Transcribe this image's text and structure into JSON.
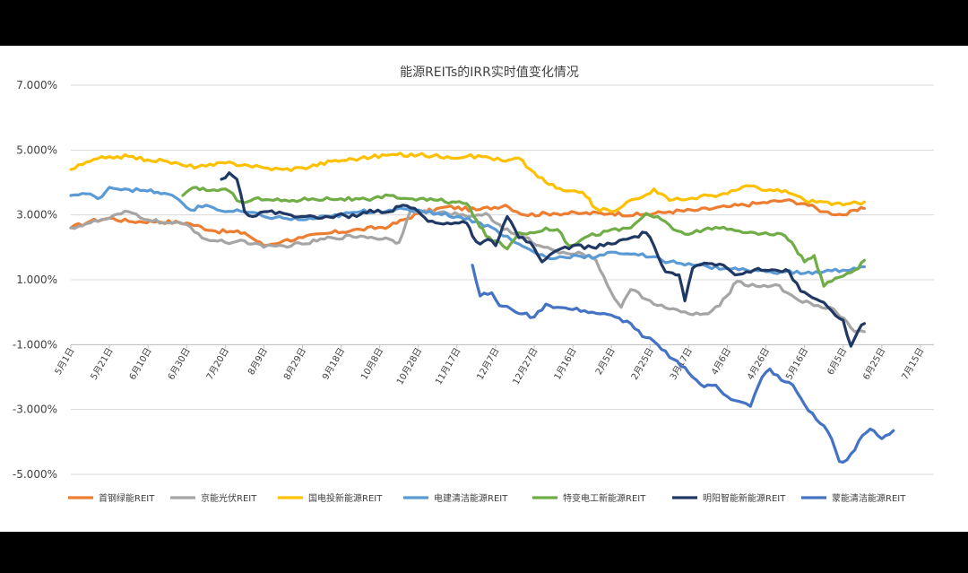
{
  "chart_data": {
    "type": "line",
    "title": "能源REITs的IRR实时值变化情况",
    "xlabel": "",
    "ylabel": "",
    "ylim": [
      -5.0,
      7.0
    ],
    "yticks": [
      {
        "value": 7.0,
        "label": "7.000%"
      },
      {
        "value": 5.0,
        "label": "5.000%"
      },
      {
        "value": 3.0,
        "label": "3.000%"
      },
      {
        "value": 1.0,
        "label": "1.000%"
      },
      {
        "value": -1.0,
        "label": "-1.000%"
      },
      {
        "value": -3.0,
        "label": "-3.000%"
      },
      {
        "value": -5.0,
        "label": "-5.000%"
      }
    ],
    "x_dates": [
      "5月1日",
      "5月21日",
      "6月10日",
      "6月30日",
      "7月20日",
      "8月9日",
      "8月29日",
      "9月18日",
      "10月8日",
      "10月28日",
      "11月17日",
      "12月7日",
      "12月27日",
      "1月16日",
      "2月5日",
      "2月25日",
      "3月17日",
      "4月6日",
      "4月26日",
      "5月16日",
      "6月5日",
      "6月25日",
      "7月15日"
    ],
    "x_range": [
      "5月1日",
      "7月21日"
    ],
    "grid": true,
    "legend_position": "bottom",
    "series": [
      {
        "name": "首钢绿能REIT",
        "color": "#ed7d31",
        "points": [
          [
            0,
            2.6
          ],
          [
            10,
            2.8
          ],
          [
            20,
            2.9
          ],
          [
            30,
            2.8
          ],
          [
            45,
            2.8
          ],
          [
            60,
            2.75
          ],
          [
            75,
            2.5
          ],
          [
            90,
            2.45
          ],
          [
            100,
            2.05
          ],
          [
            110,
            2.2
          ],
          [
            120,
            2.3
          ],
          [
            135,
            2.45
          ],
          [
            150,
            2.55
          ],
          [
            165,
            2.65
          ],
          [
            180,
            3.05
          ],
          [
            195,
            3.25
          ],
          [
            210,
            3.15
          ],
          [
            225,
            3.3
          ],
          [
            235,
            3.0
          ],
          [
            250,
            3.05
          ],
          [
            265,
            3.05
          ],
          [
            280,
            3.05
          ],
          [
            295,
            3.0
          ],
          [
            310,
            3.1
          ],
          [
            325,
            3.15
          ],
          [
            340,
            3.25
          ],
          [
            355,
            3.35
          ],
          [
            370,
            3.45
          ],
          [
            380,
            3.35
          ],
          [
            390,
            3.1
          ],
          [
            400,
            3.0
          ],
          [
            411,
            3.2
          ]
        ]
      },
      {
        "name": "京能光伏REIT",
        "color": "#a5a5a5",
        "points": [
          [
            0,
            2.6
          ],
          [
            10,
            2.75
          ],
          [
            20,
            2.9
          ],
          [
            30,
            3.1
          ],
          [
            40,
            2.85
          ],
          [
            50,
            2.75
          ],
          [
            60,
            2.7
          ],
          [
            70,
            2.25
          ],
          [
            80,
            2.15
          ],
          [
            90,
            2.2
          ],
          [
            100,
            2.0
          ],
          [
            110,
            2.05
          ],
          [
            120,
            2.1
          ],
          [
            135,
            2.3
          ],
          [
            150,
            2.35
          ],
          [
            165,
            2.25
          ],
          [
            170,
            2.15
          ],
          [
            176,
            3.15
          ],
          [
            185,
            3.1
          ],
          [
            195,
            3.05
          ],
          [
            205,
            2.95
          ],
          [
            215,
            3.05
          ],
          [
            220,
            2.75
          ],
          [
            228,
            2.45
          ],
          [
            235,
            2.3
          ],
          [
            245,
            2.0
          ],
          [
            255,
            1.85
          ],
          [
            265,
            1.8
          ],
          [
            272,
            1.6
          ],
          [
            280,
            0.6
          ],
          [
            285,
            0.15
          ],
          [
            290,
            0.7
          ],
          [
            298,
            0.4
          ],
          [
            310,
            0.1
          ],
          [
            320,
            -0.05
          ],
          [
            330,
            -0.05
          ],
          [
            336,
            0.2
          ],
          [
            345,
            0.95
          ],
          [
            355,
            0.8
          ],
          [
            365,
            0.85
          ],
          [
            375,
            0.45
          ],
          [
            385,
            0.2
          ],
          [
            395,
            0.1
          ],
          [
            402,
            -0.3
          ],
          [
            406,
            -0.6
          ],
          [
            411,
            -0.6
          ]
        ]
      },
      {
        "name": "国电投新能源REIT",
        "color": "#ffc000",
        "points": [
          [
            0,
            4.4
          ],
          [
            10,
            4.65
          ],
          [
            20,
            4.8
          ],
          [
            30,
            4.8
          ],
          [
            40,
            4.7
          ],
          [
            50,
            4.65
          ],
          [
            60,
            4.5
          ],
          [
            70,
            4.5
          ],
          [
            80,
            4.6
          ],
          [
            90,
            4.55
          ],
          [
            100,
            4.45
          ],
          [
            110,
            4.4
          ],
          [
            120,
            4.45
          ],
          [
            135,
            4.65
          ],
          [
            150,
            4.75
          ],
          [
            165,
            4.85
          ],
          [
            180,
            4.85
          ],
          [
            195,
            4.8
          ],
          [
            205,
            4.8
          ],
          [
            215,
            4.8
          ],
          [
            225,
            4.65
          ],
          [
            232,
            4.75
          ],
          [
            238,
            4.4
          ],
          [
            246,
            4.0
          ],
          [
            255,
            3.75
          ],
          [
            265,
            3.7
          ],
          [
            272,
            3.2
          ],
          [
            280,
            3.1
          ],
          [
            288,
            3.4
          ],
          [
            296,
            3.55
          ],
          [
            302,
            3.8
          ],
          [
            310,
            3.45
          ],
          [
            320,
            3.5
          ],
          [
            330,
            3.6
          ],
          [
            340,
            3.65
          ],
          [
            350,
            3.9
          ],
          [
            360,
            3.75
          ],
          [
            370,
            3.75
          ],
          [
            380,
            3.45
          ],
          [
            390,
            3.4
          ],
          [
            400,
            3.3
          ],
          [
            411,
            3.4
          ]
        ]
      },
      {
        "name": "电建清洁能源REIT",
        "color": "#5b9bd5",
        "points": [
          [
            0,
            3.6
          ],
          [
            8,
            3.65
          ],
          [
            14,
            3.5
          ],
          [
            20,
            3.85
          ],
          [
            28,
            3.8
          ],
          [
            36,
            3.75
          ],
          [
            45,
            3.7
          ],
          [
            54,
            3.55
          ],
          [
            62,
            3.15
          ],
          [
            70,
            3.3
          ],
          [
            80,
            3.1
          ],
          [
            90,
            3.1
          ],
          [
            100,
            2.95
          ],
          [
            110,
            2.9
          ],
          [
            120,
            2.85
          ],
          [
            135,
            2.95
          ],
          [
            150,
            3.1
          ],
          [
            165,
            3.15
          ],
          [
            180,
            3.15
          ],
          [
            190,
            3.05
          ],
          [
            200,
            2.95
          ],
          [
            210,
            2.8
          ],
          [
            220,
            2.55
          ],
          [
            230,
            2.15
          ],
          [
            240,
            1.85
          ],
          [
            248,
            1.65
          ],
          [
            255,
            1.7
          ],
          [
            262,
            1.75
          ],
          [
            272,
            1.7
          ],
          [
            282,
            1.85
          ],
          [
            292,
            1.8
          ],
          [
            300,
            1.7
          ],
          [
            310,
            1.55
          ],
          [
            320,
            1.5
          ],
          [
            330,
            1.4
          ],
          [
            340,
            1.35
          ],
          [
            350,
            1.3
          ],
          [
            360,
            1.25
          ],
          [
            370,
            1.25
          ],
          [
            380,
            1.2
          ],
          [
            390,
            1.25
          ],
          [
            400,
            1.3
          ],
          [
            411,
            1.4
          ]
        ]
      },
      {
        "name": "特变电工新能源REIT",
        "color": "#70ad47",
        "points": [
          [
            58,
            3.6
          ],
          [
            65,
            3.85
          ],
          [
            72,
            3.75
          ],
          [
            80,
            3.8
          ],
          [
            88,
            3.4
          ],
          [
            95,
            3.5
          ],
          [
            105,
            3.45
          ],
          [
            115,
            3.45
          ],
          [
            125,
            3.5
          ],
          [
            140,
            3.5
          ],
          [
            155,
            3.45
          ],
          [
            165,
            3.6
          ],
          [
            175,
            3.5
          ],
          [
            190,
            3.45
          ],
          [
            205,
            3.35
          ],
          [
            210,
            2.85
          ],
          [
            215,
            2.35
          ],
          [
            220,
            2.2
          ],
          [
            226,
            1.95
          ],
          [
            232,
            2.45
          ],
          [
            240,
            2.45
          ],
          [
            246,
            2.6
          ],
          [
            252,
            2.55
          ],
          [
            258,
            2.05
          ],
          [
            268,
            2.35
          ],
          [
            278,
            2.5
          ],
          [
            290,
            2.6
          ],
          [
            298,
            3.05
          ],
          [
            306,
            2.85
          ],
          [
            312,
            2.55
          ],
          [
            320,
            2.4
          ],
          [
            330,
            2.6
          ],
          [
            340,
            2.55
          ],
          [
            350,
            2.45
          ],
          [
            360,
            2.45
          ],
          [
            370,
            2.35
          ],
          [
            375,
            2.0
          ],
          [
            380,
            1.55
          ],
          [
            385,
            1.75
          ],
          [
            390,
            0.8
          ],
          [
            396,
            1.05
          ],
          [
            402,
            1.2
          ],
          [
            406,
            1.3
          ],
          [
            411,
            1.6
          ]
        ]
      },
      {
        "name": "明阳智能新能源REIT",
        "color": "#203864",
        "points": [
          [
            78,
            4.1
          ],
          [
            82,
            4.3
          ],
          [
            86,
            4.1
          ],
          [
            88,
            3.65
          ],
          [
            90,
            3.1
          ],
          [
            94,
            2.95
          ],
          [
            100,
            3.1
          ],
          [
            110,
            3.05
          ],
          [
            120,
            2.95
          ],
          [
            130,
            2.9
          ],
          [
            138,
            3.0
          ],
          [
            148,
            2.95
          ],
          [
            155,
            3.15
          ],
          [
            165,
            3.1
          ],
          [
            172,
            3.3
          ],
          [
            178,
            3.2
          ],
          [
            185,
            2.8
          ],
          [
            195,
            2.75
          ],
          [
            205,
            2.75
          ],
          [
            208,
            2.35
          ],
          [
            212,
            2.1
          ],
          [
            216,
            2.25
          ],
          [
            220,
            2.05
          ],
          [
            226,
            2.95
          ],
          [
            232,
            2.3
          ],
          [
            238,
            2.15
          ],
          [
            244,
            1.55
          ],
          [
            250,
            1.85
          ],
          [
            260,
            2.05
          ],
          [
            270,
            2.0
          ],
          [
            280,
            2.1
          ],
          [
            288,
            2.25
          ],
          [
            298,
            2.45
          ],
          [
            302,
            2.05
          ],
          [
            308,
            1.25
          ],
          [
            315,
            1.15
          ],
          [
            318,
            0.35
          ],
          [
            322,
            1.35
          ],
          [
            330,
            1.5
          ],
          [
            338,
            1.45
          ],
          [
            344,
            1.15
          ],
          [
            350,
            1.25
          ],
          [
            356,
            1.35
          ],
          [
            365,
            1.3
          ],
          [
            372,
            1.25
          ],
          [
            378,
            0.65
          ],
          [
            384,
            0.45
          ],
          [
            390,
            0.3
          ],
          [
            396,
            -0.1
          ],
          [
            400,
            -0.25
          ],
          [
            404,
            -1.05
          ],
          [
            408,
            -0.55
          ],
          [
            411,
            -0.35
          ]
        ]
      },
      {
        "name": "蒙能清洁能源REIT",
        "color": "#4472c4",
        "points": [
          [
            208,
            1.45
          ],
          [
            212,
            0.5
          ],
          [
            218,
            0.6
          ],
          [
            222,
            0.2
          ],
          [
            228,
            0.1
          ],
          [
            234,
            -0.05
          ],
          [
            240,
            -0.15
          ],
          [
            246,
            0.25
          ],
          [
            252,
            0.15
          ],
          [
            258,
            0.1
          ],
          [
            266,
            0.05
          ],
          [
            274,
            -0.05
          ],
          [
            282,
            -0.15
          ],
          [
            290,
            -0.35
          ],
          [
            296,
            -0.75
          ],
          [
            302,
            -0.9
          ],
          [
            306,
            -1.15
          ],
          [
            312,
            -1.45
          ],
          [
            318,
            -1.7
          ],
          [
            322,
            -2.0
          ],
          [
            328,
            -2.3
          ],
          [
            334,
            -2.25
          ],
          [
            340,
            -2.6
          ],
          [
            346,
            -2.75
          ],
          [
            352,
            -2.9
          ],
          [
            358,
            -2.0
          ],
          [
            362,
            -1.75
          ],
          [
            368,
            -2.1
          ],
          [
            374,
            -2.25
          ],
          [
            380,
            -2.85
          ],
          [
            386,
            -3.3
          ],
          [
            390,
            -3.5
          ],
          [
            394,
            -3.9
          ],
          [
            398,
            -4.6
          ],
          [
            402,
            -4.55
          ],
          [
            406,
            -4.25
          ],
          [
            410,
            -3.8
          ],
          [
            414,
            -3.6
          ],
          [
            420,
            -3.9
          ],
          [
            426,
            -3.65
          ]
        ]
      }
    ]
  }
}
